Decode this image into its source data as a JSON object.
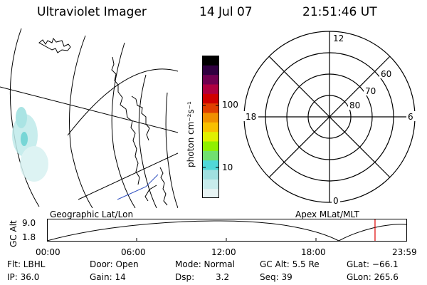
{
  "header": {
    "instrument": "Ultraviolet Imager",
    "date": "14 Jul 07",
    "time": "21:51:46 UT"
  },
  "colorbar": {
    "unit_label": "photon cm⁻²s⁻¹",
    "ticks": [
      "100",
      "10"
    ],
    "colors": [
      "#e8f4f4",
      "#c8ecec",
      "#a0e0e0",
      "#50d8d8",
      "#70e070",
      "#90f000",
      "#e0f000",
      "#f8c000",
      "#f09000",
      "#e04000",
      "#d00000",
      "#b00040",
      "#700050",
      "#300040",
      "#000000"
    ]
  },
  "polar": {
    "mlt_labels": {
      "top": "12",
      "left": "18",
      "right": "6",
      "bottom": "0"
    },
    "lat_labels": [
      "60",
      "70",
      "80"
    ]
  },
  "map": {
    "geographic_label": "Geographic Lat/Lon",
    "apex_label": "Apex MLat/MLT"
  },
  "timeline": {
    "ylabel": "GC Alt",
    "ymax": "9.0",
    "ymin": "1.8",
    "ticks": [
      "00:00",
      "06:00",
      "12:00",
      "18:00",
      "23:59"
    ],
    "current_fraction": 0.911,
    "marker_color": "#dd0000"
  },
  "status": {
    "row1": {
      "filter": "Flt: LBHL",
      "door": "Door: Open",
      "mode": "Mode: Normal",
      "gc_alt": "GC Alt: 5.5 Re",
      "glat": "GLat: −66.1"
    },
    "row2": {
      "ip": "IP: 36.0",
      "gain": "Gain: 14",
      "dsp_label": "Dsp:",
      "dsp_value": "3.2",
      "seq": "Seq: 39",
      "glon": "GLon: 265.6"
    }
  }
}
